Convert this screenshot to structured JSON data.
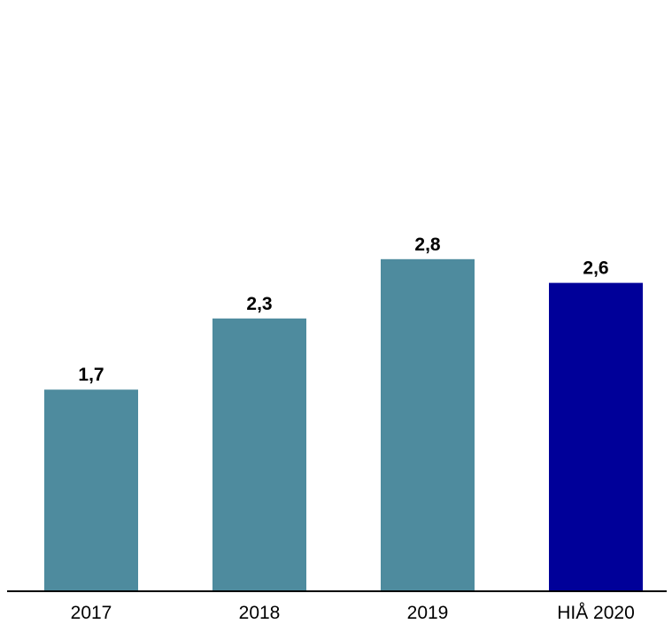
{
  "chart_data": {
    "type": "bar",
    "categories": [
      "2017",
      "2018",
      "2019",
      "HIÅ 2020"
    ],
    "values": [
      1.7,
      2.3,
      2.8,
      2.6
    ],
    "value_labels": [
      "1,7",
      "2,3",
      "2,8",
      "2,6"
    ],
    "title": "",
    "xlabel": "",
    "ylabel": "",
    "ylim": [
      0,
      5
    ],
    "grid": false,
    "legend": "none",
    "colors": [
      "#4e8b9e",
      "#4e8b9e",
      "#4e8b9e",
      "#000099"
    ]
  }
}
